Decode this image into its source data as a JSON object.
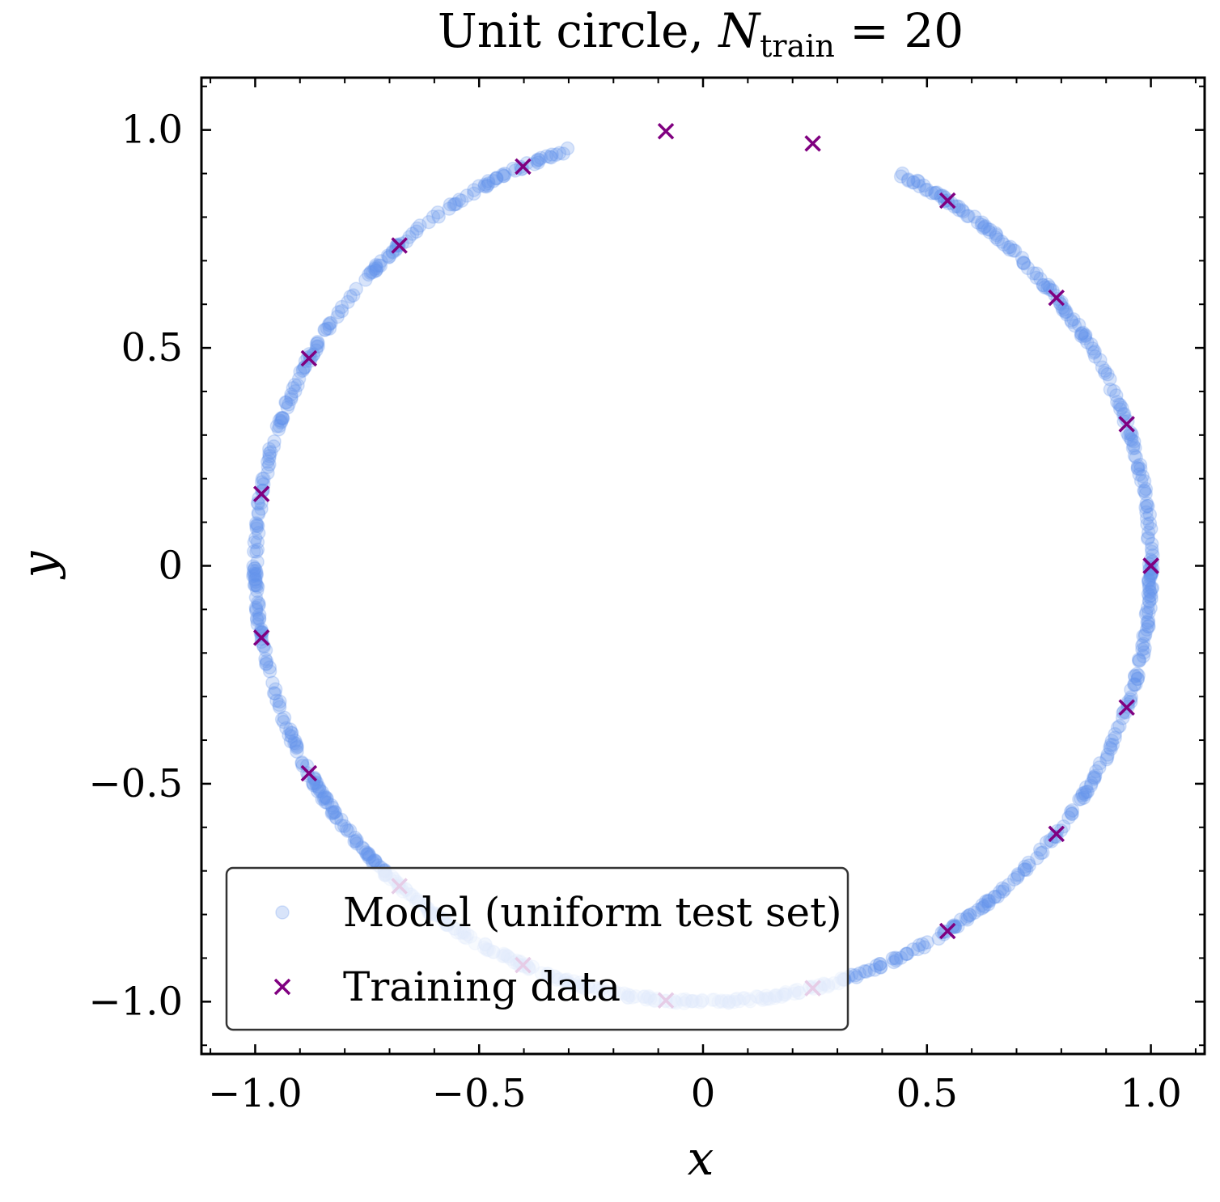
{
  "chart_data": {
    "type": "scatter",
    "title": {
      "prefix": "Unit circle, ",
      "symbol": "N",
      "subscript": "train",
      "suffix": " = 20"
    },
    "xlabel": "x",
    "ylabel": "y",
    "xlim": [
      -1.12,
      1.12
    ],
    "ylim": [
      -1.12,
      1.12
    ],
    "xticks": [
      -1.0,
      -0.5,
      0,
      0.5,
      1.0
    ],
    "yticks": [
      -1.0,
      -0.5,
      0,
      0.5,
      1.0
    ],
    "xtick_labels": [
      "−1.0",
      "−0.5",
      "0",
      "0.5",
      "1.0"
    ],
    "ytick_labels": [
      "−1.0",
      "−0.5",
      "0",
      "0.5",
      "1.0"
    ],
    "grid": false,
    "legend_position": "lower-left",
    "series": [
      {
        "name": "Model (uniform test set)",
        "marker": "circle",
        "color": "#6495ED",
        "opacity": 0.25,
        "sampling": {
          "count": 1000,
          "angle_range_deg": [
            -180,
            180
          ],
          "excluded_angle_range_deg": [
            64,
            107
          ],
          "radius": 1.0
        }
      },
      {
        "name": "Training data",
        "marker": "x",
        "color": "#800080",
        "points": [
          {
            "x": 1.0,
            "y": 0.0
          },
          {
            "x": 0.946,
            "y": 0.325
          },
          {
            "x": 0.789,
            "y": 0.615
          },
          {
            "x": 0.546,
            "y": 0.838
          },
          {
            "x": 0.245,
            "y": 0.969
          },
          {
            "x": -0.083,
            "y": 0.997
          },
          {
            "x": -0.402,
            "y": 0.916
          },
          {
            "x": -0.678,
            "y": 0.735
          },
          {
            "x": -0.88,
            "y": 0.476
          },
          {
            "x": -0.986,
            "y": 0.165
          },
          {
            "x": -0.986,
            "y": -0.165
          },
          {
            "x": -0.88,
            "y": -0.476
          },
          {
            "x": -0.678,
            "y": -0.735
          },
          {
            "x": -0.402,
            "y": -0.916
          },
          {
            "x": -0.083,
            "y": -0.997
          },
          {
            "x": 0.245,
            "y": -0.969
          },
          {
            "x": 0.546,
            "y": -0.838
          },
          {
            "x": 0.789,
            "y": -0.615
          },
          {
            "x": 0.946,
            "y": -0.325
          },
          {
            "x": 1.0,
            "y": -0.0
          }
        ]
      }
    ]
  }
}
